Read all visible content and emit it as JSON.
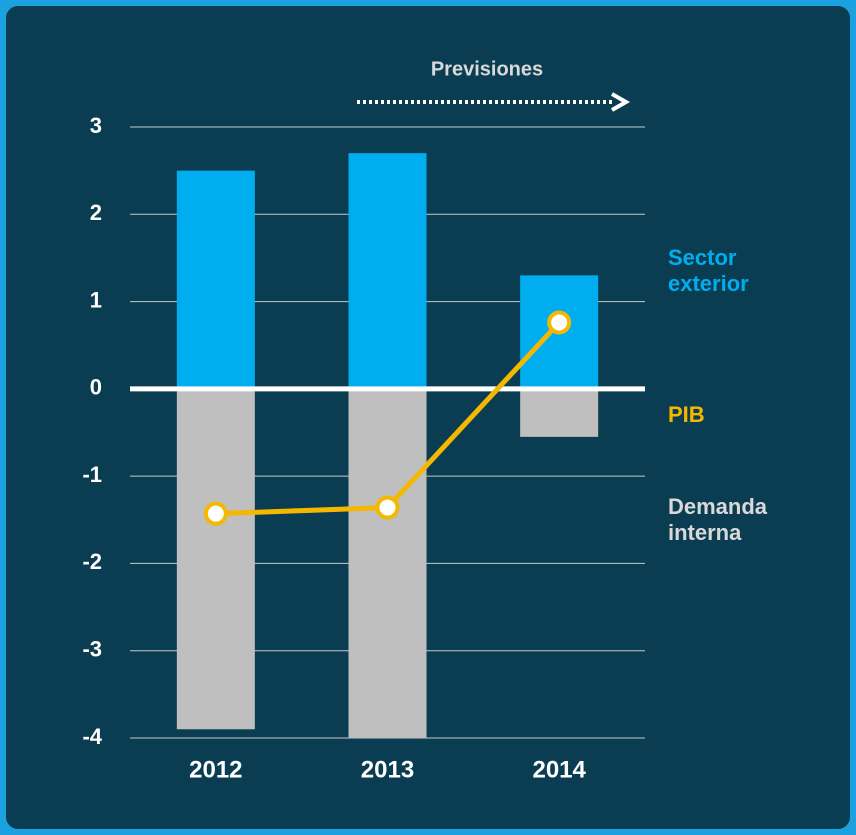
{
  "chart_data": {
    "type": "bar",
    "categories": [
      "2012",
      "2013",
      "2014"
    ],
    "annotation": "Previsiones",
    "series": [
      {
        "name": "Sector exterior",
        "color": "#00aeef",
        "values": [
          2.5,
          2.7,
          1.3
        ]
      },
      {
        "name": "Demanda interna",
        "color": "#bfbfbf",
        "values": [
          -3.9,
          -4.0,
          -0.55
        ]
      },
      {
        "name": "PIB",
        "type": "line",
        "color": "#f5b800",
        "values": [
          -1.43,
          -1.36,
          0.76
        ]
      }
    ],
    "ylim": [
      -4,
      3
    ],
    "yticks": [
      -4,
      -3,
      -2,
      -1,
      0,
      1,
      2,
      3
    ],
    "grid": true,
    "legend": "right"
  }
}
